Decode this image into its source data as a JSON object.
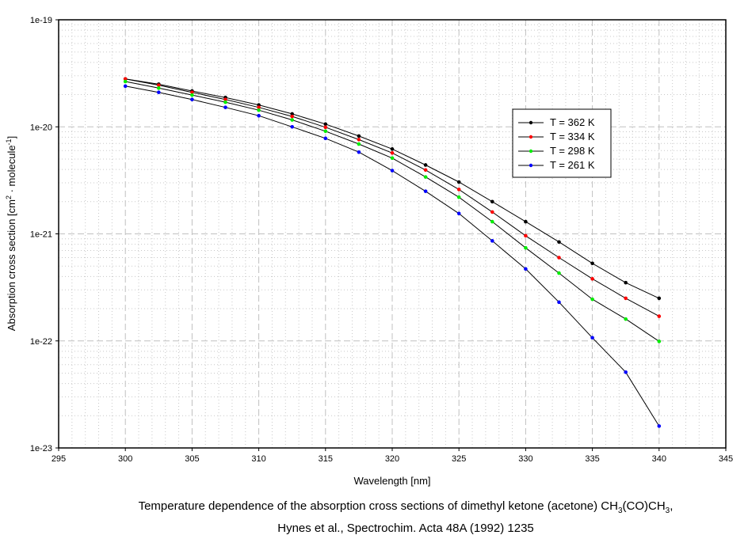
{
  "chart_data": {
    "type": "line",
    "title": "",
    "xlabel": "Wavelength [nm]",
    "ylabel": {
      "pre": "Absorption cross section [cm",
      "sup1": "2",
      "mid": " · molecule",
      "sup2": "-1",
      "post": "]"
    },
    "xlim": [
      295,
      345
    ],
    "ylim": [
      1e-23,
      1e-19
    ],
    "yscale": "log",
    "xticks": [
      "295",
      "300",
      "305",
      "310",
      "315",
      "320",
      "325",
      "330",
      "335",
      "340",
      "345"
    ],
    "yticks": [
      "1e-19",
      "1e-20",
      "1e-21",
      "1e-22",
      "1e-23"
    ],
    "grid": true,
    "legend_position": "top-right",
    "x": [
      300,
      302.5,
      305,
      307.5,
      310,
      312.5,
      315,
      317.5,
      320,
      322.5,
      325,
      327.5,
      330,
      332.5,
      335,
      337.5,
      340
    ],
    "series": [
      {
        "name": "T = 362 K",
        "color": "#000000",
        "values": [
          2.8e-20,
          2.5e-20,
          2.16e-20,
          1.88e-20,
          1.6e-20,
          1.32e-20,
          1.06e-20,
          8.2e-21,
          6.2e-21,
          4.4e-21,
          3.05e-21,
          2e-21,
          1.3e-21,
          8.4e-22,
          5.3e-22,
          3.5e-22,
          2.5e-22
        ]
      },
      {
        "name": "T = 334 K",
        "color": "#ff0000",
        "values": [
          2.8e-20,
          2.45e-20,
          2.1e-20,
          1.8e-20,
          1.52e-20,
          1.25e-20,
          9.9e-21,
          7.6e-21,
          5.7e-21,
          3.95e-21,
          2.6e-21,
          1.6e-21,
          9.6e-22,
          6e-22,
          3.8e-22,
          2.5e-22,
          1.7e-22
        ]
      },
      {
        "name": "T = 298 K",
        "color": "#00ee00",
        "values": [
          2.65e-20,
          2.3e-20,
          1.98e-20,
          1.7e-20,
          1.43e-20,
          1.16e-20,
          9.1e-21,
          6.9e-21,
          5.1e-21,
          3.4e-21,
          2.2e-21,
          1.3e-21,
          7.4e-22,
          4.3e-22,
          2.45e-22,
          1.6e-22,
          9.9e-23
        ]
      },
      {
        "name": "T = 261 K",
        "color": "#0000ff",
        "values": [
          2.4e-20,
          2.1e-20,
          1.8e-20,
          1.52e-20,
          1.27e-20,
          1e-20,
          7.8e-21,
          5.8e-21,
          3.9e-21,
          2.5e-21,
          1.55e-21,
          8.6e-22,
          4.7e-22,
          2.3e-22,
          1.07e-22,
          5.1e-23,
          1.6e-23
        ]
      }
    ]
  },
  "caption": {
    "line1_pre": "Temperature dependence of the absorption cross sections of dimethyl ketone (acetone) CH",
    "sub1": "3",
    "line1_mid": "(CO)CH",
    "sub2": "3",
    "line1_post": ",",
    "line2": "Hynes et al., Spectrochim. Acta 48A (1992) 1235"
  }
}
